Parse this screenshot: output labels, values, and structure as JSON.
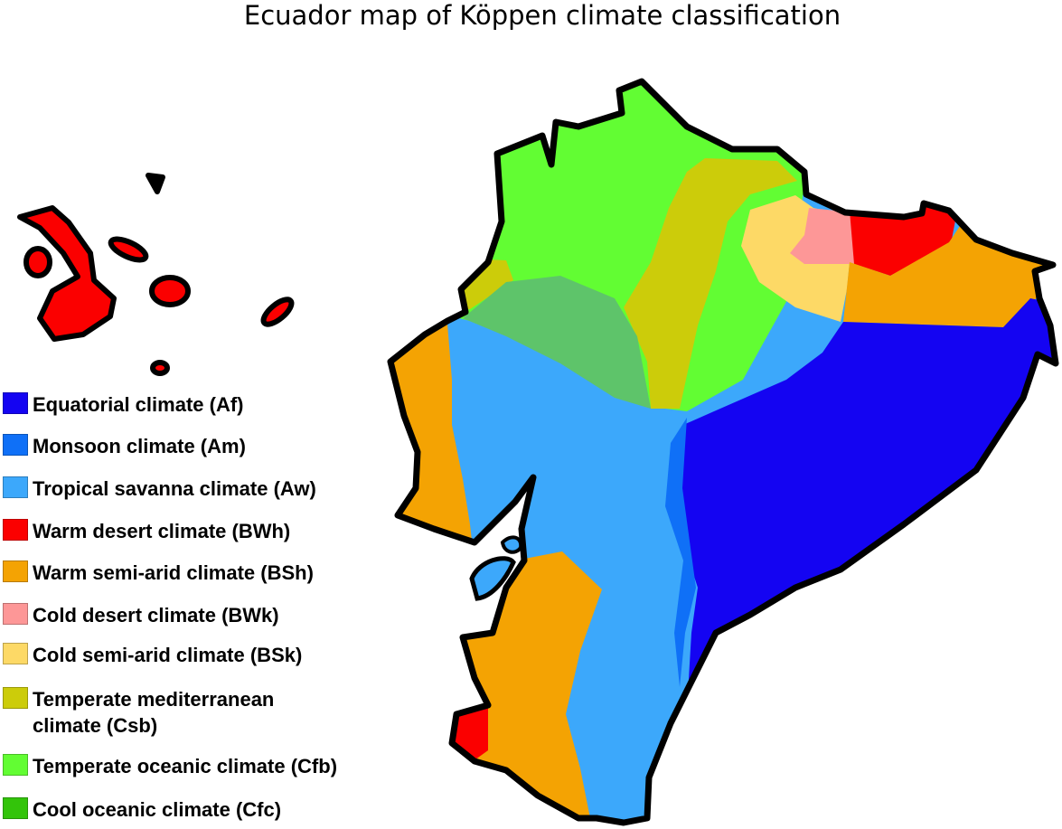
{
  "title": "Ecuador map of Köppen climate classification",
  "legend": [
    {
      "label": "Equatorial climate (Af)",
      "color": "#1404f2"
    },
    {
      "label": "Monsoon climate (Am)",
      "color": "#0f70f7"
    },
    {
      "label": "Tropical savanna climate (Aw)",
      "color": "#3ca8fb"
    },
    {
      "label": "Warm desert climate (BWh)",
      "color": "#fb0000"
    },
    {
      "label": "Warm semi-arid climate (BSh)",
      "color": "#f4a303"
    },
    {
      "label": "Cold desert climate (BWk)",
      "color": "#fd9797"
    },
    {
      "label": "Cold semi-arid climate (BSk)",
      "color": "#fdd966"
    },
    {
      "label": "Temperate mediterranean climate (Csb)",
      "color": "#cccc0a"
    },
    {
      "label": "Temperate oceanic climate (Cfb)",
      "color": "#62fd33"
    },
    {
      "label": "Cool oceanic climate (Cfc)",
      "color": "#33c40a"
    }
  ],
  "map_colors": {
    "outline": "#000000",
    "mixed_green": "#5ec46a"
  }
}
